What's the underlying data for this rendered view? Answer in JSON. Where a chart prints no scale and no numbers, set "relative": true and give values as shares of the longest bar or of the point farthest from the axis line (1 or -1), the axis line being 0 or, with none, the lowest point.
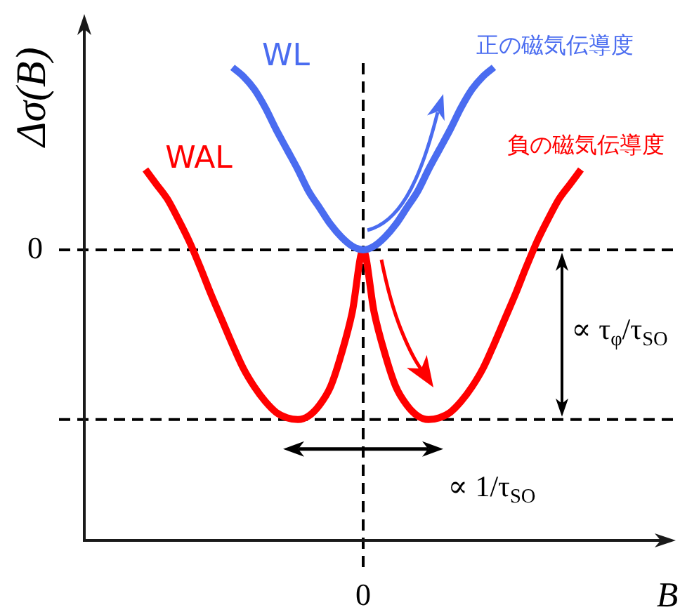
{
  "chart_data": {
    "type": "line",
    "relative": true,
    "ylabel": "Δσ(B)",
    "xlabel": "B",
    "categories": [
      null,
      null,
      null,
      null,
      null,
      null,
      null,
      null,
      null,
      null,
      null,
      null,
      null,
      null,
      null,
      null,
      null,
      null,
      null,
      null,
      null,
      null,
      null,
      null,
      null,
      null,
      null,
      null,
      null,
      null,
      null,
      null,
      null,
      null,
      null,
      null,
      null,
      null,
      null,
      null,
      null,
      null,
      null,
      null,
      null,
      null,
      null,
      null,
      null,
      null,
      null,
      null,
      null
    ],
    "series": [
      {
        "name": "WL",
        "color": "#4a6cf0",
        "values": [
          null,
          null,
          null,
          null,
          null,
          null,
          null,
          null,
          null,
          null,
          null,
          null,
          null,
          null,
          1,
          0.95,
          0.88,
          0.78,
          0.66,
          0.55,
          0.44,
          0.32,
          0.23,
          0.14,
          0.07,
          0.02,
          0,
          0.02,
          0.07,
          0.14,
          0.23,
          0.32,
          0.44,
          0.55,
          0.66,
          0.78,
          0.88,
          0.95,
          1,
          null,
          null,
          null,
          null,
          null,
          null,
          null,
          null,
          null,
          null,
          null,
          null,
          null,
          null
        ]
      },
      {
        "name": "WAL",
        "color": "#ff0000",
        "values": [
          null,
          null,
          null,
          null,
          null,
          null,
          0.44,
          0.36,
          0.28,
          0.17,
          0.05,
          -0.09,
          -0.24,
          -0.38,
          -0.52,
          -0.65,
          -0.75,
          -0.83,
          -0.89,
          -0.92,
          -0.93,
          -0.91,
          -0.85,
          -0.75,
          -0.57,
          -0.34,
          0,
          -0.34,
          -0.57,
          -0.75,
          -0.85,
          -0.91,
          -0.93,
          -0.92,
          -0.89,
          -0.83,
          -0.75,
          -0.65,
          -0.52,
          -0.38,
          -0.24,
          -0.09,
          0.05,
          0.17,
          0.28,
          0.36,
          0.44,
          null,
          null,
          null,
          null,
          null,
          null
        ]
      }
    ],
    "ref_lines": [
      {
        "axis": "y",
        "value": 0,
        "label": "0",
        "color": "#000000",
        "line_style": "dashed"
      },
      {
        "axis": "y",
        "value": -0.93,
        "color": "#000000",
        "line_style": "dashed"
      },
      {
        "axis": "x",
        "value": "0",
        "color": "#000000",
        "line_style": "dashed"
      }
    ],
    "annotations": [
      "正の磁気伝導度",
      "負の磁気伝導度",
      "∝ τ$_{φ}$/τ$_{SO}$",
      "∝ 1/τ$_{SO}$"
    ]
  }
}
